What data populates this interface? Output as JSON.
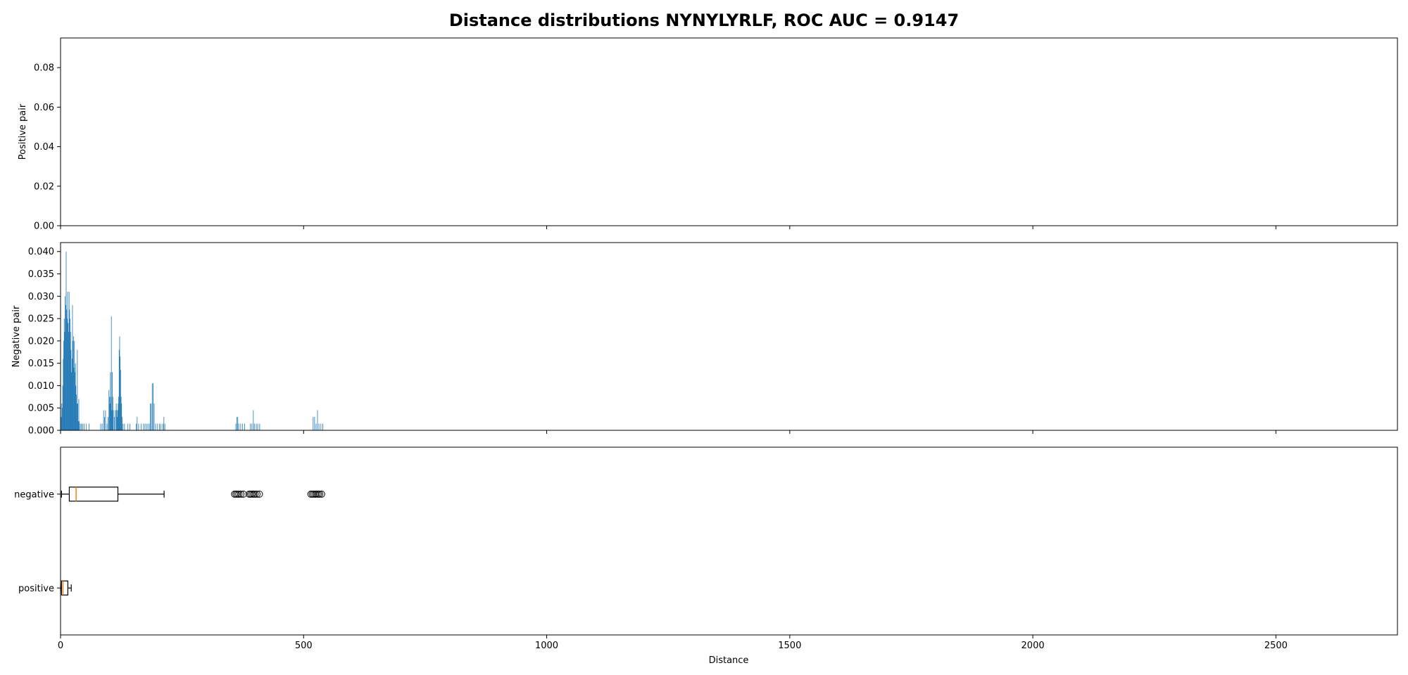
{
  "chart_data": {
    "title": "Distance distributions NYNYLYRLF, ROC AUC = 0.9147",
    "xlabel": "Distance",
    "x_ticks": [
      0,
      500,
      1000,
      1500,
      2000,
      2500
    ],
    "xlim": [
      0,
      2750
    ],
    "grid": false,
    "colors": {
      "bars": "#1f77b4",
      "median": "#ff7f0e",
      "box": "#000000"
    },
    "panels": [
      {
        "type": "bar",
        "ylabel": "Positive pair",
        "ylim": [
          0,
          0.095
        ],
        "y_ticks": [
          0.0,
          0.02,
          0.04,
          0.06,
          0.08
        ],
        "tick_format": 2,
        "bin_width": 1,
        "bars": []
      },
      {
        "type": "bar",
        "ylabel": "Negative pair",
        "ylim": [
          0,
          0.042
        ],
        "y_ticks": [
          0.0,
          0.005,
          0.01,
          0.015,
          0.02,
          0.025,
          0.03,
          0.035,
          0.04
        ],
        "tick_format": 3,
        "bin_width": 1,
        "bars": [
          [
            1,
            0.003
          ],
          [
            2,
            0.006
          ],
          [
            3,
            0.005
          ],
          [
            4,
            0.01
          ],
          [
            5,
            0.016
          ],
          [
            6,
            0.02
          ],
          [
            7,
            0.025
          ],
          [
            8,
            0.022
          ],
          [
            9,
            0.03
          ],
          [
            10,
            0.028
          ],
          [
            11,
            0.04
          ],
          [
            12,
            0.027
          ],
          [
            13,
            0.025
          ],
          [
            14,
            0.031
          ],
          [
            15,
            0.024
          ],
          [
            16,
            0.022
          ],
          [
            17,
            0.031
          ],
          [
            18,
            0.027
          ],
          [
            19,
            0.025
          ],
          [
            20,
            0.022
          ],
          [
            21,
            0.018
          ],
          [
            22,
            0.013
          ],
          [
            23,
            0.016
          ],
          [
            24,
            0.028
          ],
          [
            25,
            0.02
          ],
          [
            26,
            0.021
          ],
          [
            27,
            0.014
          ],
          [
            28,
            0.02
          ],
          [
            29,
            0.013
          ],
          [
            30,
            0.015
          ],
          [
            31,
            0.01
          ],
          [
            32,
            0.008
          ],
          [
            33,
            0.006
          ],
          [
            34,
            0.018
          ],
          [
            35,
            0.006
          ],
          [
            36,
            0.002
          ],
          [
            37,
            0.007
          ],
          [
            38,
            0.002
          ],
          [
            40,
            0.0015
          ],
          [
            42,
            0.0015
          ],
          [
            45,
            0.0015
          ],
          [
            48,
            0.0015
          ],
          [
            52,
            0.0015
          ],
          [
            58,
            0.0015
          ],
          [
            82,
            0.0015
          ],
          [
            85,
            0.0015
          ],
          [
            88,
            0.0045
          ],
          [
            90,
            0.003
          ],
          [
            92,
            0.0045
          ],
          [
            95,
            0.0015
          ],
          [
            97,
            0.003
          ],
          [
            99,
            0.009
          ],
          [
            100,
            0.0075
          ],
          [
            101,
            0.006
          ],
          [
            102,
            0.013
          ],
          [
            103,
            0.0075
          ],
          [
            104,
            0.0255
          ],
          [
            105,
            0.0045
          ],
          [
            106,
            0.013
          ],
          [
            107,
            0.0075
          ],
          [
            108,
            0.0045
          ],
          [
            110,
            0.003
          ],
          [
            112,
            0.0045
          ],
          [
            114,
            0.006
          ],
          [
            115,
            0.0045
          ],
          [
            116,
            0.003
          ],
          [
            117,
            0.0045
          ],
          [
            118,
            0.006
          ],
          [
            119,
            0.0075
          ],
          [
            120,
            0.018
          ],
          [
            121,
            0.021
          ],
          [
            122,
            0.0165
          ],
          [
            123,
            0.0135
          ],
          [
            124,
            0.0075
          ],
          [
            125,
            0.006
          ],
          [
            126,
            0.003
          ],
          [
            128,
            0.0015
          ],
          [
            131,
            0.0015
          ],
          [
            138,
            0.0015
          ],
          [
            142,
            0.0015
          ],
          [
            155,
            0.0015
          ],
          [
            157,
            0.003
          ],
          [
            160,
            0.0015
          ],
          [
            165,
            0.0015
          ],
          [
            170,
            0.0015
          ],
          [
            173,
            0.0015
          ],
          [
            176,
            0.0015
          ],
          [
            179,
            0.0015
          ],
          [
            182,
            0.0015
          ],
          [
            184,
            0.006
          ],
          [
            186,
            0.006
          ],
          [
            188,
            0.0105
          ],
          [
            190,
            0.0105
          ],
          [
            192,
            0.006
          ],
          [
            195,
            0.0015
          ],
          [
            199,
            0.0015
          ],
          [
            203,
            0.0015
          ],
          [
            206,
            0.0015
          ],
          [
            210,
            0.0015
          ],
          [
            212,
            0.003
          ],
          [
            214,
            0.0015
          ],
          [
            360,
            0.0015
          ],
          [
            362,
            0.003
          ],
          [
            364,
            0.003
          ],
          [
            366,
            0.0015
          ],
          [
            370,
            0.0015
          ],
          [
            374,
            0.0015
          ],
          [
            378,
            0.0015
          ],
          [
            390,
            0.0015
          ],
          [
            393,
            0.0015
          ],
          [
            396,
            0.0045
          ],
          [
            398,
            0.0015
          ],
          [
            402,
            0.0015
          ],
          [
            405,
            0.0015
          ],
          [
            409,
            0.0015
          ],
          [
            519,
            0.003
          ],
          [
            522,
            0.003
          ],
          [
            525,
            0.0015
          ],
          [
            528,
            0.0045
          ],
          [
            531,
            0.0015
          ],
          [
            535,
            0.0015
          ],
          [
            539,
            0.0015
          ]
        ]
      },
      {
        "type": "box",
        "orientation": "horizontal",
        "categories": [
          "positive",
          "negative"
        ],
        "boxes": [
          {
            "label": "positive",
            "whisker_low": 0,
            "q1": 2,
            "median": 5,
            "q3": 15,
            "whisker_high": 22,
            "outliers": []
          },
          {
            "label": "negative",
            "whisker_low": 2,
            "q1": 18,
            "median": 32,
            "q3": 118,
            "whisker_high": 213,
            "outliers": [
              358,
              361,
              364,
              367,
              371,
              376,
              388,
              391,
              394,
              397,
              400,
              404,
              409,
              515,
              518,
              521,
              524,
              527,
              530,
              533,
              537
            ]
          }
        ]
      }
    ]
  }
}
